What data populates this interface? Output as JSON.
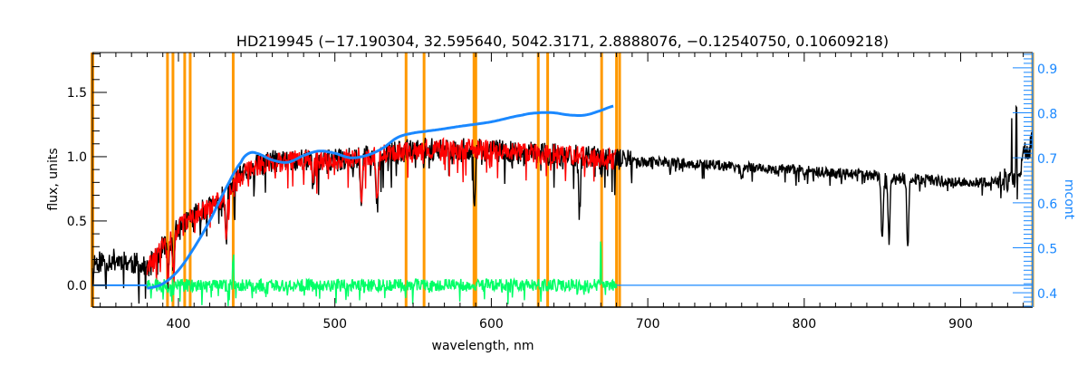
{
  "chart_data": {
    "type": "line",
    "title": "HD219945   (−17.190304, 32.595640, 5042.3171, 2.8888076, −0.12540750, 0.10609218)",
    "xlabel": "wavelength, nm",
    "ylabel": "flux, units",
    "y2label": "mcont",
    "xlim": [
      345,
      946
    ],
    "ylim": [
      -0.17,
      1.81
    ],
    "y2lim": [
      0.368,
      0.934
    ],
    "xticks": [
      "400",
      "500",
      "600",
      "700",
      "800",
      "900"
    ],
    "yticks": [
      "0.0",
      "0.5",
      "1.0",
      "1.5"
    ],
    "y2ticks": [
      "0.4",
      "0.5",
      "0.6",
      "0.7",
      "0.8",
      "0.9"
    ],
    "colors": {
      "observed": "#000000",
      "model": "#ff0000",
      "residual": "#00ff66",
      "mcont": "#1a88ff",
      "mask": "#ff9900",
      "axis2": "#1a88ff"
    },
    "series": [
      {
        "name": "observed flux",
        "axis": "left",
        "noise": 0.09,
        "x": [
          345,
          360,
          375,
          380,
          390,
          400,
          410,
          420,
          430,
          440,
          450,
          460,
          470,
          480,
          500,
          520,
          540,
          560,
          580,
          600,
          620,
          640,
          660,
          680,
          700,
          750,
          800,
          850,
          900,
          925,
          935,
          940,
          946
        ],
        "y": [
          0.18,
          0.2,
          0.16,
          0.12,
          0.3,
          0.45,
          0.55,
          0.6,
          0.7,
          0.85,
          0.93,
          0.96,
          0.97,
          0.98,
          0.97,
          1.0,
          1.04,
          1.06,
          1.06,
          1.05,
          1.03,
          1.02,
          1.0,
          0.98,
          0.96,
          0.93,
          0.89,
          0.85,
          0.8,
          0.8,
          0.84,
          1.0,
          1.1
        ],
        "lines": [
          [
            393.4,
            0.3
          ],
          [
            396.8,
            0.3
          ],
          [
            430.5,
            0.3
          ],
          [
            486,
            0.2
          ],
          [
            517,
            0.35
          ],
          [
            527,
            0.4
          ],
          [
            589.3,
            0.45
          ],
          [
            656.3,
            0.45
          ],
          [
            760,
            0.1
          ],
          [
            849.8,
            0.5
          ],
          [
            854.2,
            0.5
          ],
          [
            866.2,
            0.55
          ]
        ]
      },
      {
        "name": "model flux",
        "axis": "left",
        "noise": 0.08,
        "x": [
          380,
          390,
          400,
          410,
          420,
          430,
          440,
          450,
          460,
          470,
          480,
          500,
          520,
          540,
          560,
          580,
          600,
          620,
          640,
          660,
          680
        ],
        "y": [
          0.12,
          0.3,
          0.45,
          0.55,
          0.6,
          0.7,
          0.85,
          0.93,
          0.96,
          0.97,
          0.98,
          0.97,
          1.0,
          1.04,
          1.06,
          1.06,
          1.05,
          1.03,
          1.02,
          1.0,
          0.98
        ],
        "lines": [
          [
            393.4,
            0.3
          ],
          [
            396.8,
            0.3
          ],
          [
            430.5,
            0.3
          ],
          [
            486,
            0.2
          ],
          [
            517,
            0.35
          ],
          [
            527,
            0.4
          ]
        ]
      },
      {
        "name": "residual",
        "axis": "left",
        "noise": 0.05,
        "x": [
          380,
          500,
          600,
          680
        ],
        "y": [
          0.0,
          0.0,
          0.0,
          0.0
        ],
        "spikes": [
          [
            670,
            0.32
          ],
          [
            435,
            0.2
          ],
          [
            545,
            -0.08
          ],
          [
            655,
            -0.1
          ]
        ]
      },
      {
        "name": "mcont",
        "axis": "right",
        "x": [
          380,
          390,
          400,
          410,
          420,
          430,
          440,
          445,
          450,
          460,
          470,
          480,
          490,
          500,
          510,
          520,
          530,
          540,
          550,
          560,
          580,
          600,
          620,
          630,
          640,
          650,
          660,
          670,
          678
        ],
        "y": [
          0.41,
          0.42,
          0.45,
          0.5,
          0.56,
          0.63,
          0.69,
          0.71,
          0.71,
          0.695,
          0.69,
          0.705,
          0.715,
          0.71,
          0.7,
          0.705,
          0.72,
          0.745,
          0.755,
          0.76,
          0.77,
          0.78,
          0.795,
          0.8,
          0.8,
          0.795,
          0.795,
          0.805,
          0.815
        ]
      },
      {
        "name": "mcont baseline",
        "axis": "left",
        "x": [
          345,
          380,
          680,
          946
        ],
        "y": [
          0,
          0,
          0,
          0
        ]
      }
    ],
    "mask_lines": [
      [
        345,
        4
      ],
      [
        393,
        3
      ],
      [
        396.5,
        3
      ],
      [
        404,
        3
      ],
      [
        407.5,
        3
      ],
      [
        435,
        3
      ],
      [
        545.5,
        3
      ],
      [
        557,
        3
      ],
      [
        589.5,
        5
      ],
      [
        630,
        3
      ],
      [
        636,
        3
      ],
      [
        670.5,
        3
      ],
      [
        680,
        3
      ],
      [
        682,
        3
      ],
      [
        946,
        3
      ]
    ]
  }
}
